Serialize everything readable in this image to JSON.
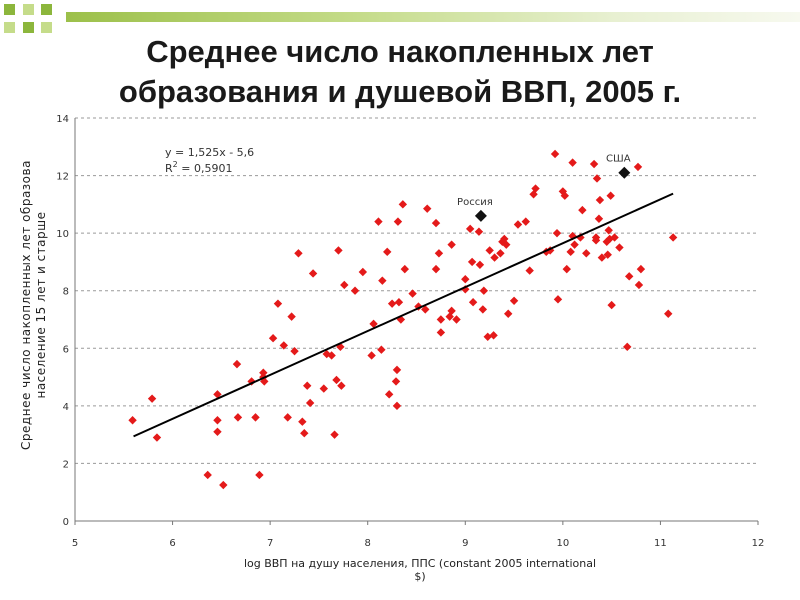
{
  "slide": {
    "title_line1": "Среднее число накопленных лет",
    "title_line2": "образования и душевой ВВП, 2005 г."
  },
  "colors": {
    "accent_green": "#8cb63c",
    "light_green": "#c5dc8a",
    "marker_red": "#e41a1a",
    "highlight_marker": "#111111"
  },
  "chart_data": {
    "type": "scatter",
    "title": "",
    "xlabel": "log  ВВП на душу населения, ППС (constant 2005 international $)",
    "ylabel_line1": "Среднее число накопленных лет образова",
    "ylabel_line2": "население 15 лет и старше",
    "xlim": [
      5,
      12
    ],
    "ylim": [
      0,
      14
    ],
    "x_ticks": [
      "5",
      "6",
      "7",
      "8",
      "9",
      "10",
      "11",
      "12"
    ],
    "y_ticks": [
      "0",
      "2",
      "4",
      "6",
      "8",
      "10",
      "12",
      "14"
    ],
    "grid": true,
    "equation": "y = 1,525x - 5,6",
    "r2_label": "R",
    "r2_sup": "2",
    "r2_value": " = 0,5901",
    "trendline": {
      "slope": 1.525,
      "intercept": -5.6,
      "x_range": [
        5.6,
        11.13
      ]
    },
    "highlights": [
      {
        "label": "Россия",
        "x": 9.16,
        "y": 10.6
      },
      {
        "label": "США",
        "x": 10.63,
        "y": 12.1
      }
    ],
    "points": [
      [
        5.59,
        3.5
      ],
      [
        5.79,
        4.25
      ],
      [
        5.84,
        2.9
      ],
      [
        6.36,
        1.6
      ],
      [
        6.46,
        4.4
      ],
      [
        6.46,
        3.5
      ],
      [
        6.46,
        3.1
      ],
      [
        6.52,
        1.25
      ],
      [
        6.66,
        5.45
      ],
      [
        6.67,
        3.6
      ],
      [
        6.81,
        4.85
      ],
      [
        6.85,
        3.6
      ],
      [
        6.89,
        1.6
      ],
      [
        6.93,
        5.0
      ],
      [
        6.93,
        5.15
      ],
      [
        6.94,
        4.85
      ],
      [
        7.03,
        6.35
      ],
      [
        7.08,
        7.55
      ],
      [
        7.14,
        6.1
      ],
      [
        7.18,
        3.6
      ],
      [
        7.22,
        7.1
      ],
      [
        7.25,
        5.9
      ],
      [
        7.29,
        9.3
      ],
      [
        7.33,
        3.45
      ],
      [
        7.35,
        3.05
      ],
      [
        7.38,
        4.7
      ],
      [
        7.41,
        4.1
      ],
      [
        7.44,
        8.6
      ],
      [
        7.55,
        4.6
      ],
      [
        7.58,
        5.8
      ],
      [
        7.63,
        5.75
      ],
      [
        7.66,
        3.0
      ],
      [
        7.68,
        4.9
      ],
      [
        7.7,
        9.4
      ],
      [
        7.72,
        6.05
      ],
      [
        7.73,
        4.7
      ],
      [
        7.76,
        8.2
      ],
      [
        7.87,
        8.0
      ],
      [
        7.95,
        8.65
      ],
      [
        8.04,
        5.75
      ],
      [
        8.06,
        6.85
      ],
      [
        8.11,
        10.4
      ],
      [
        8.14,
        5.95
      ],
      [
        8.15,
        8.35
      ],
      [
        8.2,
        9.35
      ],
      [
        8.22,
        4.4
      ],
      [
        8.25,
        7.55
      ],
      [
        8.29,
        4.85
      ],
      [
        8.3,
        5.25
      ],
      [
        8.3,
        4.0
      ],
      [
        8.31,
        10.4
      ],
      [
        8.32,
        7.6
      ],
      [
        8.34,
        7.0
      ],
      [
        8.36,
        11.0
      ],
      [
        8.38,
        8.75
      ],
      [
        8.46,
        7.9
      ],
      [
        8.52,
        7.45
      ],
      [
        8.59,
        7.35
      ],
      [
        8.61,
        10.85
      ],
      [
        8.7,
        8.75
      ],
      [
        8.7,
        10.35
      ],
      [
        8.73,
        9.3
      ],
      [
        8.75,
        7.0
      ],
      [
        8.75,
        6.55
      ],
      [
        8.84,
        7.1
      ],
      [
        8.86,
        9.6
      ],
      [
        8.86,
        7.3
      ],
      [
        8.91,
        7.0
      ],
      [
        9.0,
        8.4
      ],
      [
        9.0,
        8.05
      ],
      [
        9.05,
        10.15
      ],
      [
        9.07,
        9.0
      ],
      [
        9.08,
        7.6
      ],
      [
        9.14,
        10.05
      ],
      [
        9.15,
        8.9
      ],
      [
        9.18,
        7.35
      ],
      [
        9.19,
        8.0
      ],
      [
        9.23,
        6.4
      ],
      [
        9.25,
        9.4
      ],
      [
        9.29,
        6.45
      ],
      [
        9.3,
        9.15
      ],
      [
        9.36,
        9.3
      ],
      [
        9.38,
        9.7
      ],
      [
        9.4,
        9.8
      ],
      [
        9.42,
        9.6
      ],
      [
        9.44,
        7.2
      ],
      [
        9.5,
        7.65
      ],
      [
        9.54,
        10.3
      ],
      [
        9.62,
        10.4
      ],
      [
        9.66,
        8.7
      ],
      [
        9.7,
        11.35
      ],
      [
        9.72,
        11.55
      ],
      [
        9.83,
        9.35
      ],
      [
        9.87,
        9.4
      ],
      [
        9.92,
        12.75
      ],
      [
        9.94,
        10.0
      ],
      [
        9.95,
        7.7
      ],
      [
        10.0,
        11.45
      ],
      [
        10.02,
        11.3
      ],
      [
        10.04,
        8.75
      ],
      [
        10.08,
        9.35
      ],
      [
        10.1,
        12.45
      ],
      [
        10.1,
        9.9
      ],
      [
        10.12,
        9.6
      ],
      [
        10.18,
        9.85
      ],
      [
        10.2,
        10.8
      ],
      [
        10.24,
        9.3
      ],
      [
        10.32,
        12.4
      ],
      [
        10.34,
        9.85
      ],
      [
        10.34,
        9.75
      ],
      [
        10.35,
        11.9
      ],
      [
        10.37,
        10.5
      ],
      [
        10.38,
        11.15
      ],
      [
        10.4,
        9.15
      ],
      [
        10.45,
        9.7
      ],
      [
        10.46,
        9.25
      ],
      [
        10.47,
        10.1
      ],
      [
        10.48,
        9.8
      ],
      [
        10.49,
        11.3
      ],
      [
        10.5,
        7.5
      ],
      [
        10.53,
        9.85
      ],
      [
        10.58,
        9.5
      ],
      [
        10.66,
        6.05
      ],
      [
        10.68,
        8.5
      ],
      [
        10.77,
        12.3
      ],
      [
        10.78,
        8.2
      ],
      [
        10.8,
        8.75
      ],
      [
        11.08,
        7.2
      ],
      [
        11.13,
        9.85
      ]
    ]
  }
}
